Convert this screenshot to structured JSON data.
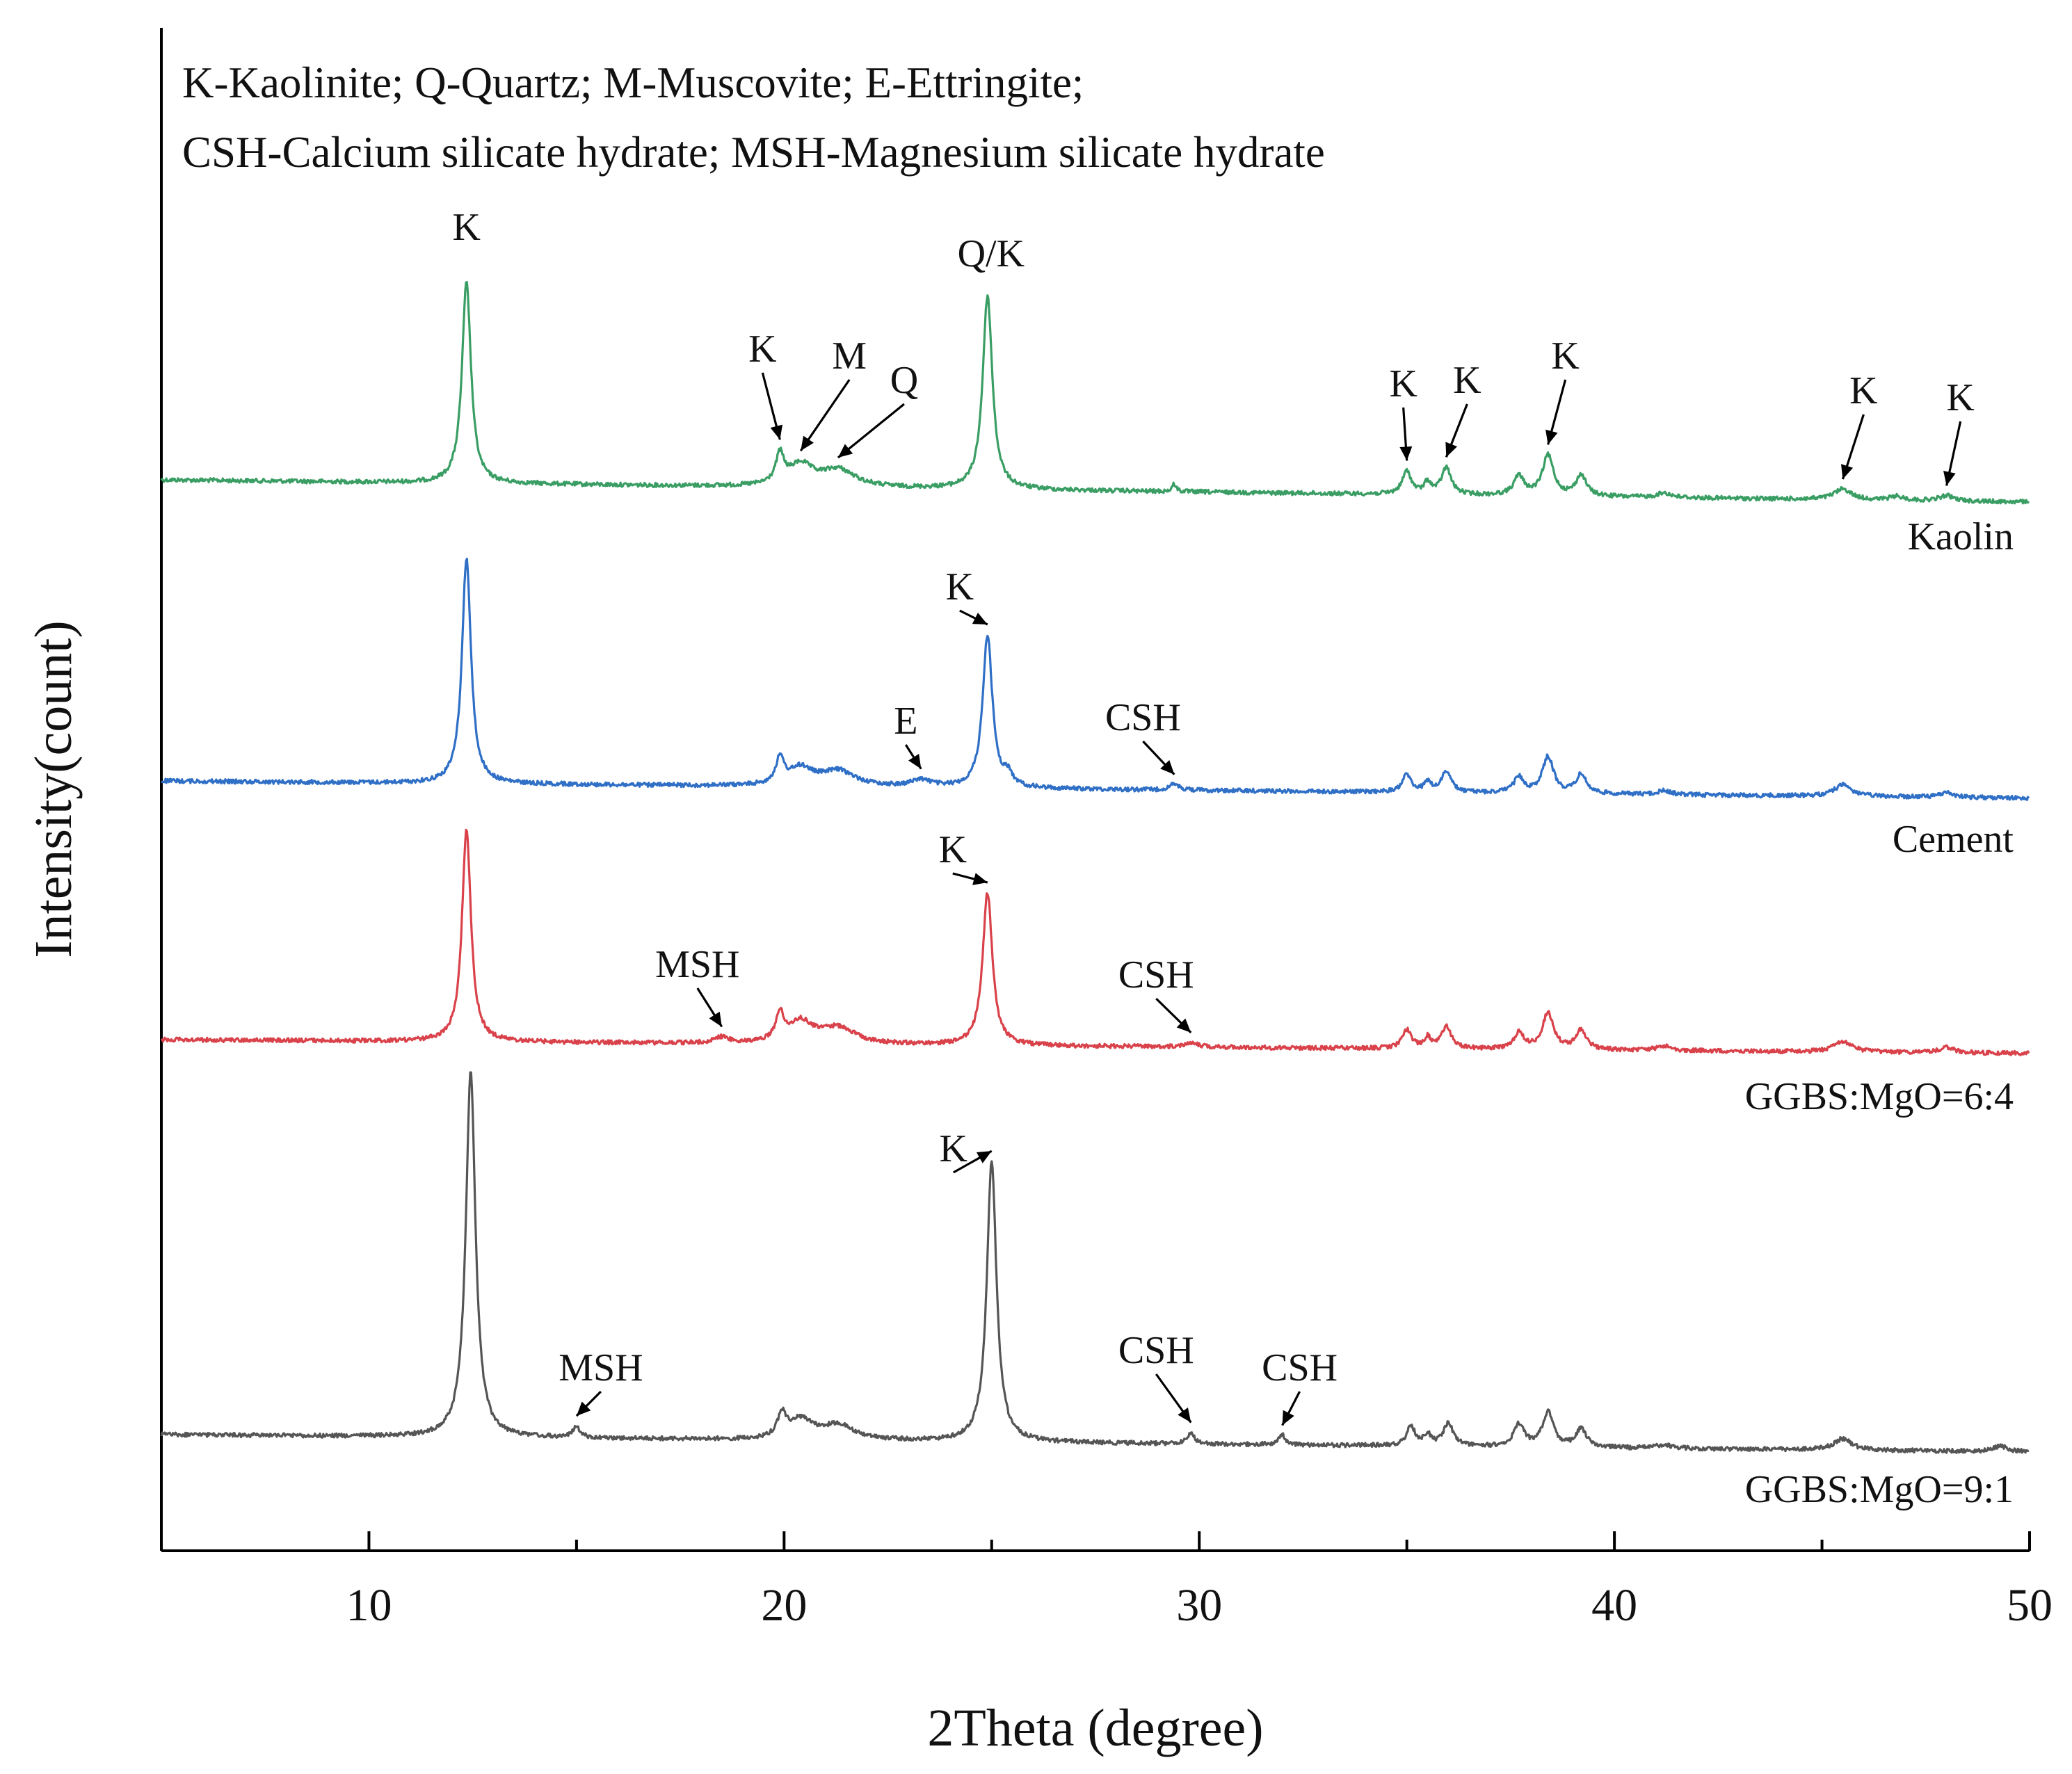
{
  "chart_data": {
    "type": "line",
    "title": "",
    "xlabel": "2Theta (degree)",
    "ylabel": "Intensity(count)",
    "xlim": [
      5,
      50
    ],
    "xticks": [
      10,
      20,
      30,
      40,
      50
    ],
    "yticks": false,
    "grid": false,
    "legend_text": [
      "K-Kaolinite; Q-Quartz; M-Muscovite; E-Ettringite;",
      "CSH-Calcium silicate hydrate; MSH-Magnesium silicate hydrate"
    ],
    "series": [
      {
        "name": "Kaolin",
        "color": "#3a9e64",
        "base_start": 370,
        "base_end": 312,
        "peaks": [
          [
            12.35,
            525,
            0.13
          ],
          [
            19.9,
            75,
            0.12
          ],
          [
            20.4,
            55,
            0.35
          ],
          [
            21.3,
            45,
            0.5
          ],
          [
            24.9,
            505,
            0.14
          ],
          [
            29.4,
            20,
            0.06
          ],
          [
            35.0,
            60,
            0.13
          ],
          [
            35.5,
            30,
            0.1
          ],
          [
            35.95,
            70,
            0.14
          ],
          [
            37.7,
            50,
            0.15
          ],
          [
            38.4,
            105,
            0.16
          ],
          [
            39.2,
            55,
            0.15
          ],
          [
            41.2,
            12,
            0.2
          ],
          [
            45.5,
            28,
            0.25
          ],
          [
            46.8,
            10,
            0.2
          ],
          [
            48.0,
            14,
            0.2
          ]
        ]
      },
      {
        "name": "Cement",
        "color": "#2f6fc6",
        "base_start": 320,
        "base_end": 275,
        "peaks": [
          [
            12.35,
            590,
            0.13
          ],
          [
            19.9,
            65,
            0.12
          ],
          [
            20.4,
            45,
            0.35
          ],
          [
            21.3,
            40,
            0.5
          ],
          [
            23.3,
            18,
            0.3
          ],
          [
            24.9,
            400,
            0.14
          ],
          [
            25.4,
            30,
            0.12
          ],
          [
            29.4,
            15,
            0.15
          ],
          [
            35.0,
            45,
            0.13
          ],
          [
            35.5,
            25,
            0.1
          ],
          [
            35.95,
            55,
            0.14
          ],
          [
            37.7,
            40,
            0.15
          ],
          [
            38.4,
            95,
            0.16
          ],
          [
            39.2,
            50,
            0.15
          ],
          [
            41.2,
            10,
            0.2
          ],
          [
            45.5,
            30,
            0.25
          ],
          [
            48.0,
            12,
            0.2
          ]
        ]
      },
      {
        "name": "GGBS:MgO=6:4",
        "color": "#d9424a",
        "base_start": 286,
        "base_end": 250,
        "peaks": [
          [
            12.35,
            555,
            0.13
          ],
          [
            18.5,
            15,
            0.2
          ],
          [
            19.9,
            70,
            0.12
          ],
          [
            20.4,
            55,
            0.35
          ],
          [
            21.3,
            42,
            0.5
          ],
          [
            24.9,
            400,
            0.14
          ],
          [
            29.8,
            12,
            0.2
          ],
          [
            35.0,
            48,
            0.13
          ],
          [
            35.5,
            28,
            0.1
          ],
          [
            35.95,
            58,
            0.14
          ],
          [
            37.7,
            42,
            0.15
          ],
          [
            38.4,
            95,
            0.16
          ],
          [
            39.2,
            52,
            0.15
          ],
          [
            41.2,
            12,
            0.2
          ],
          [
            45.5,
            28,
            0.25
          ],
          [
            48.0,
            14,
            0.2
          ]
        ]
      },
      {
        "name": "GGBS:MgO=9:1",
        "color": "#555555",
        "base_start": 290,
        "base_end": 245,
        "peaks": [
          [
            12.45,
            955,
            0.14
          ],
          [
            15.0,
            30,
            0.1
          ],
          [
            19.95,
            60,
            0.12
          ],
          [
            20.4,
            50,
            0.35
          ],
          [
            21.3,
            38,
            0.5
          ],
          [
            25.0,
            735,
            0.14
          ],
          [
            29.8,
            30,
            0.1
          ],
          [
            32.0,
            25,
            0.1
          ],
          [
            35.1,
            50,
            0.13
          ],
          [
            35.5,
            28,
            0.1
          ],
          [
            36.0,
            60,
            0.14
          ],
          [
            37.7,
            58,
            0.15
          ],
          [
            38.4,
            90,
            0.16
          ],
          [
            39.2,
            48,
            0.15
          ],
          [
            41.2,
            10,
            0.2
          ],
          [
            45.5,
            30,
            0.25
          ],
          [
            49.3,
            14,
            0.2
          ]
        ]
      }
    ],
    "peak_labels": [
      {
        "series": "Kaolin",
        "text": "K",
        "x": 12.35
      },
      {
        "series": "Kaolin",
        "text": "Q/K",
        "x": 24.9
      },
      {
        "series": "Kaolin",
        "text": "K",
        "x": 19.9
      },
      {
        "series": "Kaolin",
        "text": "M",
        "x": 20.4
      },
      {
        "series": "Kaolin",
        "text": "Q",
        "x": 21.3
      },
      {
        "series": "Kaolin",
        "text": "K",
        "x": 35.0
      },
      {
        "series": "Kaolin",
        "text": "K",
        "x": 35.95
      },
      {
        "series": "Kaolin",
        "text": "K",
        "x": 38.4
      },
      {
        "series": "Kaolin",
        "text": "K",
        "x": 45.5
      },
      {
        "series": "Kaolin",
        "text": "K",
        "x": 48.0
      },
      {
        "series": "Cement",
        "text": "K",
        "x": 24.9
      },
      {
        "series": "Cement",
        "text": "E",
        "x": 23.3
      },
      {
        "series": "Cement",
        "text": "CSH",
        "x": 29.4
      },
      {
        "series": "GGBS:MgO=6:4",
        "text": "K",
        "x": 24.9
      },
      {
        "series": "GGBS:MgO=6:4",
        "text": "MSH",
        "x": 18.5
      },
      {
        "series": "GGBS:MgO=6:4",
        "text": "CSH",
        "x": 29.8
      },
      {
        "series": "GGBS:MgO=9:1",
        "text": "K",
        "x": 25.0
      },
      {
        "series": "GGBS:MgO=9:1",
        "text": "MSH",
        "x": 15.0
      },
      {
        "series": "GGBS:MgO=9:1",
        "text": "CSH",
        "x": 29.8
      },
      {
        "series": "GGBS:MgO=9:1",
        "text": "CSH",
        "x": 32.0
      }
    ]
  }
}
